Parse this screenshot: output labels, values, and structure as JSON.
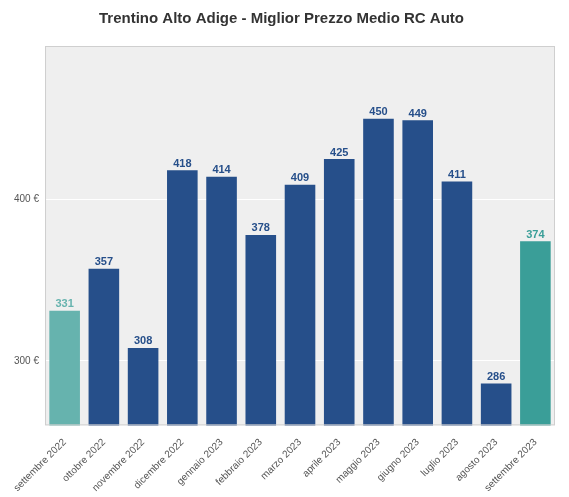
{
  "chart_data": {
    "type": "bar",
    "title": "Trentino Alto Adige - Miglior Prezzo Medio RC Auto",
    "categories": [
      "settembre 2022",
      "ottobre 2022",
      "novembre 2022",
      "dicembre 2022",
      "gennaio 2023",
      "febbraio 2023",
      "marzo 2023",
      "aprile 2023",
      "maggio 2023",
      "giugno 2023",
      "luglio 2023",
      "agosto 2023",
      "settembre 2023"
    ],
    "values": [
      331,
      357,
      308,
      418,
      414,
      378,
      409,
      425,
      450,
      449,
      411,
      286,
      374
    ],
    "colors": [
      "#66b3ae",
      "#264f8a",
      "#264f8a",
      "#264f8a",
      "#264f8a",
      "#264f8a",
      "#264f8a",
      "#264f8a",
      "#264f8a",
      "#264f8a",
      "#264f8a",
      "#264f8a",
      "#3a9e98"
    ],
    "ylim": [
      260,
      495
    ],
    "yticks": [
      {
        "value": 300,
        "label": "300 €"
      },
      {
        "value": 400,
        "label": "400 €"
      }
    ],
    "grid": true,
    "data_labels": true
  }
}
